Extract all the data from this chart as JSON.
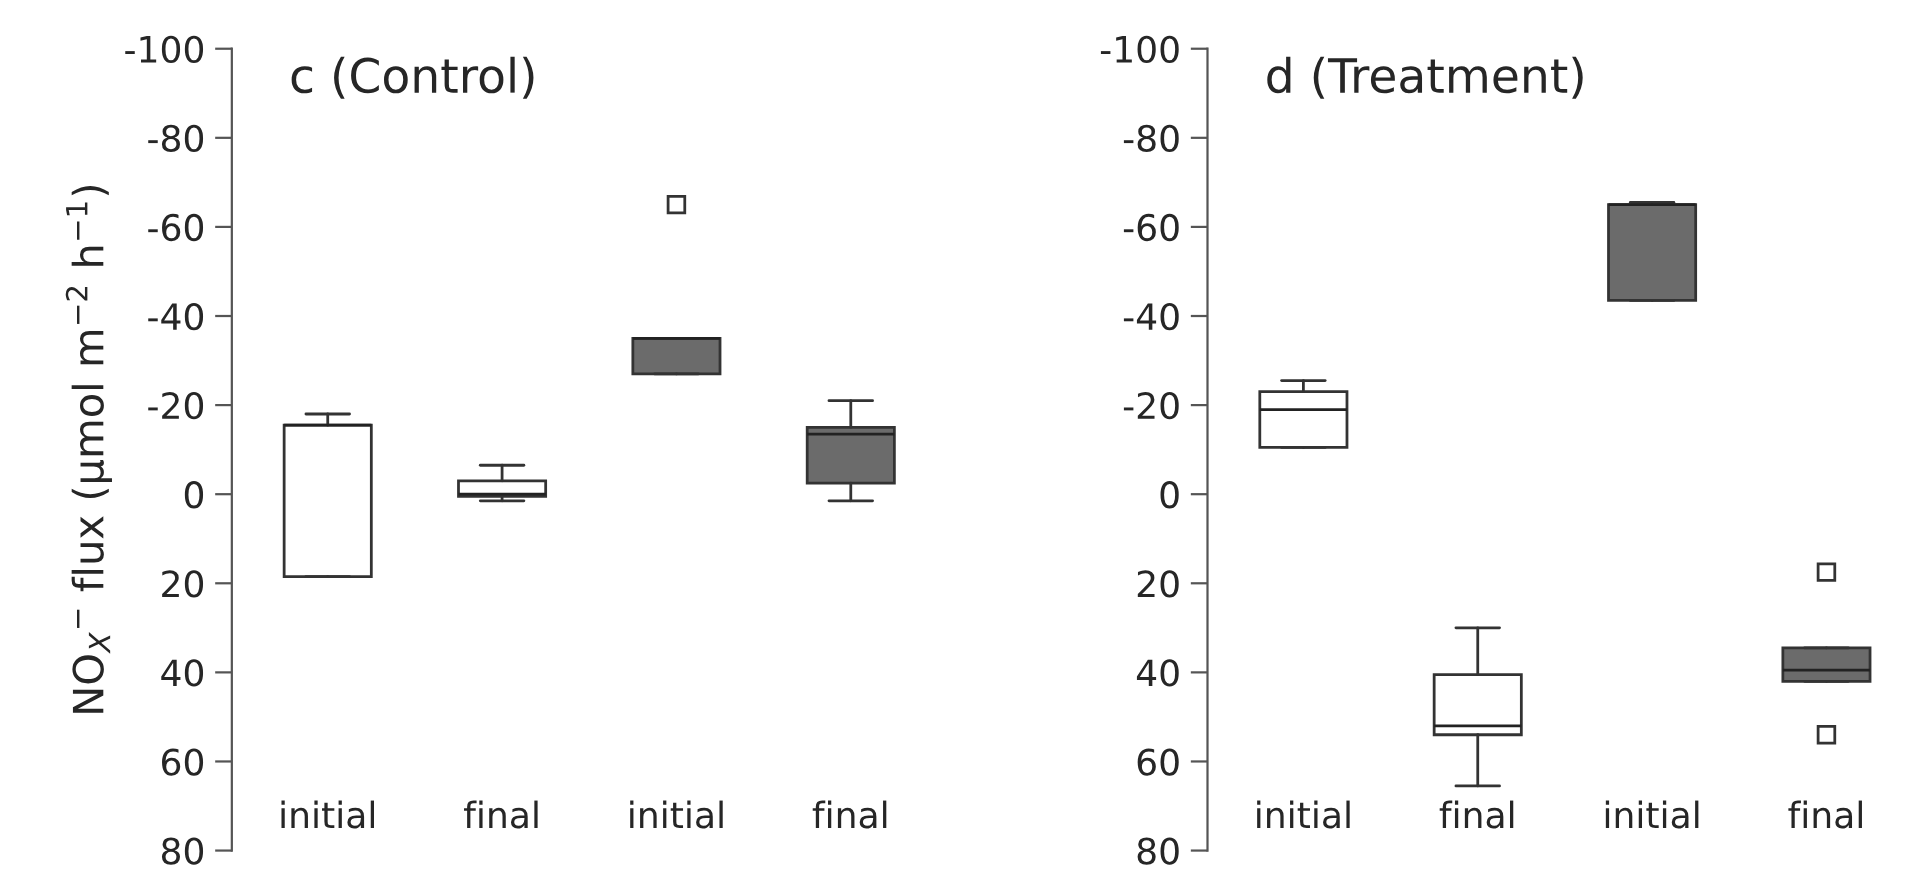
{
  "chart_data": [
    {
      "type": "box",
      "title": "c (Control)",
      "ylabel": "NO$_{X}$$^{−}$ flux (µmol m$^{−2}$ h$^{−1}$)",
      "categories": [
        "initial",
        "final",
        "initial",
        "final"
      ],
      "colors": [
        "#ffffff",
        "#ffffff",
        "#6b6b6b",
        "#6b6b6b"
      ],
      "boxes": [
        {
          "low": -18,
          "q1": -15.5,
          "median": -15.5,
          "q3": 18.5,
          "high": 18.5
        },
        {
          "low": -6.5,
          "q1": -3,
          "median": 0,
          "q3": 0.5,
          "high": 1.5
        },
        {
          "low": -35,
          "q1": -35,
          "median": -35,
          "q3": -27,
          "high": -27,
          "outliers": [
            -65
          ]
        },
        {
          "low": -21,
          "q1": -15,
          "median": -13.5,
          "q3": -2.5,
          "high": 1.5
        }
      ],
      "ylim": [
        80,
        -100
      ],
      "yticks": [
        -100,
        -80,
        -60,
        -40,
        -20,
        0,
        20,
        40,
        60,
        80
      ],
      "marker": "square",
      "grid": false
    },
    {
      "type": "box",
      "title": "d (Treatment)",
      "categories": [
        "initial",
        "final",
        "initial",
        "final"
      ],
      "colors": [
        "#ffffff",
        "#ffffff",
        "#6b6b6b",
        "#6b6b6b"
      ],
      "boxes": [
        {
          "low": -25.5,
          "q1": -23,
          "median": -19,
          "q3": -10.5,
          "high": -10.5
        },
        {
          "low": 30,
          "q1": 40.5,
          "median": 52,
          "q3": 54,
          "high": 65.5
        },
        {
          "low": -65.5,
          "q1": -65,
          "median": -65,
          "q3": -43.5,
          "high": -43.5
        },
        {
          "low": 34.5,
          "q1": 34.5,
          "median": 39.5,
          "q3": 42,
          "high": 42,
          "outliers": [
            17.5,
            54
          ]
        }
      ],
      "ylim": [
        80,
        -100
      ],
      "yticks": [
        -100,
        -80,
        -60,
        -40,
        -20,
        0,
        20,
        40,
        60,
        80
      ],
      "marker": "square",
      "grid": false
    }
  ]
}
